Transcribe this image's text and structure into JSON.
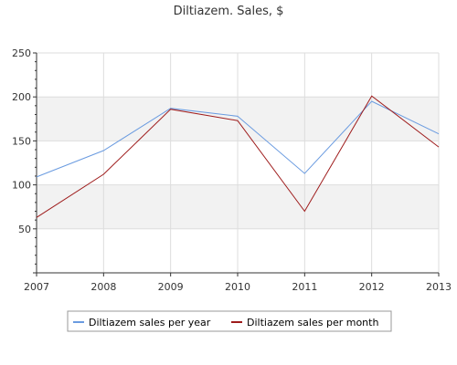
{
  "chart_data": {
    "type": "line",
    "title": "Diltiazem. Sales, $",
    "xlabel": "",
    "ylabel": "",
    "x": [
      "2007",
      "2008",
      "2009",
      "2010",
      "2011",
      "2012",
      "2013"
    ],
    "ylim": [
      0,
      250
    ],
    "yticks": [
      50,
      100,
      150,
      200,
      250
    ],
    "grid": true,
    "legend_position": "bottom",
    "series": [
      {
        "name": "Diltiazem sales per year",
        "color": "#6a9be0",
        "values": [
          109,
          139,
          187,
          178,
          113,
          195,
          158
        ]
      },
      {
        "name": "Diltiazem sales per month",
        "color": "#9e1b1b",
        "values": [
          63,
          112,
          186,
          173,
          70,
          201,
          143
        ]
      }
    ]
  }
}
